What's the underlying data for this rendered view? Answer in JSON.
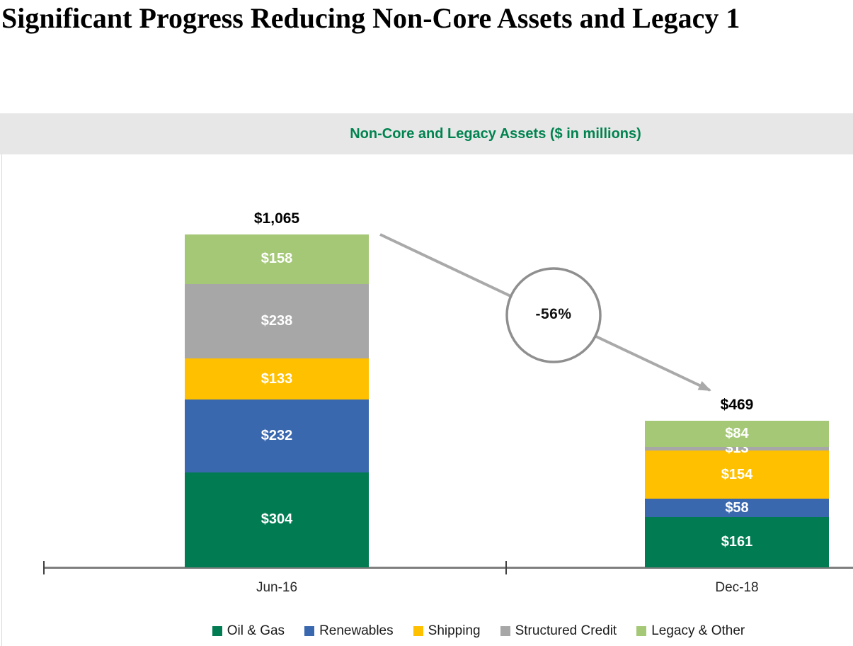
{
  "page": {
    "title": "Significant Progress Reducing Non-Core Assets and Legacy 1"
  },
  "chart_data": {
    "type": "bar",
    "stacked": true,
    "title": "Non-Core and Legacy Assets ($ in millions)",
    "categories": [
      "Jun-16",
      "Dec-18"
    ],
    "series": [
      {
        "name": "Oil & Gas",
        "color": "#007B52",
        "values": [
          304,
          161
        ],
        "value_labels": [
          "$304",
          "$161"
        ]
      },
      {
        "name": "Renewables",
        "color": "#3A68AF",
        "values": [
          232,
          58
        ],
        "value_labels": [
          "$232",
          "$58"
        ]
      },
      {
        "name": "Shipping",
        "color": "#FFC000",
        "values": [
          133,
          154
        ],
        "value_labels": [
          "$133",
          "$154"
        ]
      },
      {
        "name": "Structured Credit",
        "color": "#A7A7A7",
        "values": [
          238,
          13
        ],
        "value_labels": [
          "$238",
          "$13"
        ]
      },
      {
        "name": "Legacy & Other",
        "color": "#A5C877",
        "values": [
          158,
          84
        ],
        "value_labels": [
          "$158",
          "$84"
        ]
      }
    ],
    "stack_order": "bottom-to-top",
    "totals": [
      "$1,065",
      "$469"
    ],
    "annotation": {
      "text": "-56%",
      "shape": "circle-with-arrow"
    },
    "legend_position": "bottom",
    "y_axis_visible": false,
    "colors": {
      "band_background": "#E7E7E7",
      "chart_title_text": "#00834F",
      "value_label_text": "#FFFFFF",
      "axis_line": "#7F7F7F",
      "arrow": "#A9A9A9"
    }
  }
}
